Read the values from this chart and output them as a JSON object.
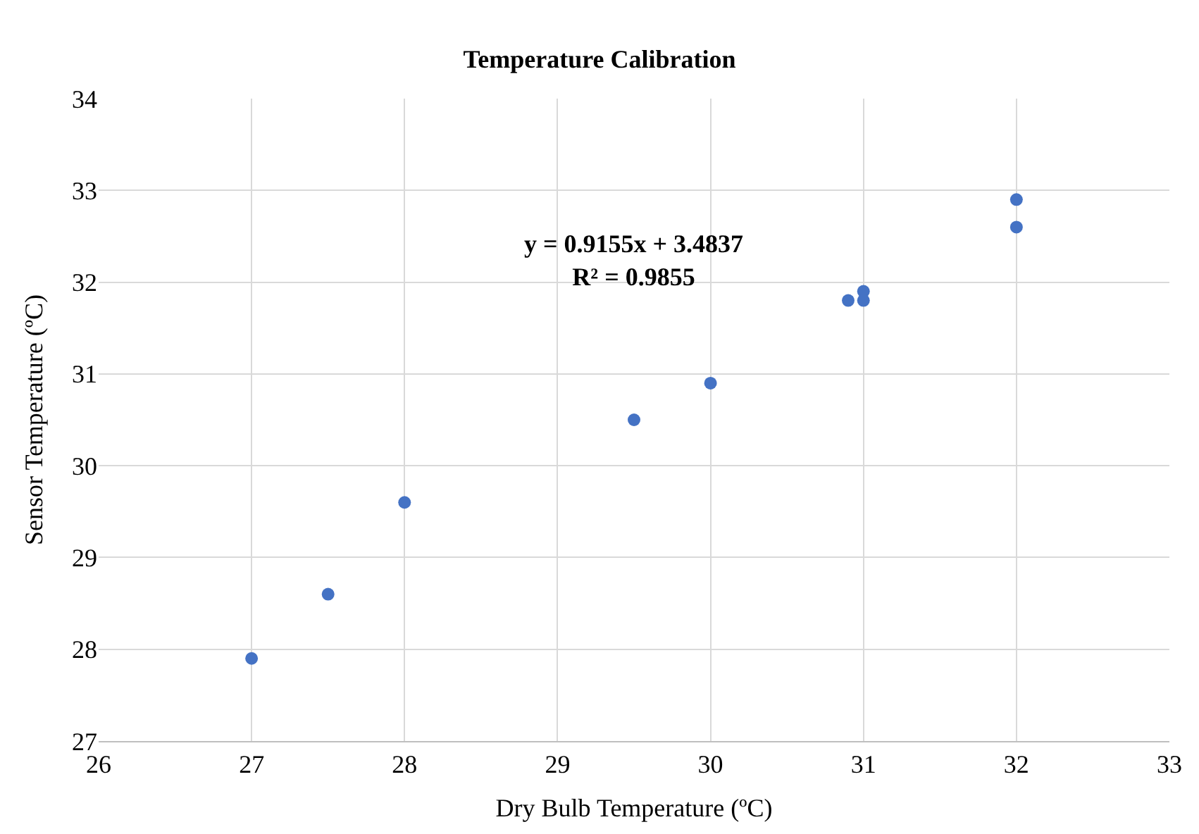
{
  "chart_data": {
    "type": "scatter",
    "title": "Temperature Calibration",
    "xlabel": "Dry Bulb Temperature (ºC)",
    "ylabel": "Sensor Temperature (ºC)",
    "x": [
      27,
      27.5,
      28,
      29.5,
      30,
      30.9,
      31,
      31,
      32,
      32
    ],
    "series": [
      {
        "color": "#4472c4",
        "values": [
          27.9,
          28.6,
          29.6,
          30.5,
          30.9,
          31.8,
          31.9,
          31.8,
          32.9,
          32.6
        ]
      }
    ],
    "annotations": [
      "y = 0.9155x + 3.4837\nR² = 0.9855"
    ],
    "xlim": [
      26,
      33
    ],
    "xticks": [
      26,
      27,
      28,
      29,
      30,
      31,
      32,
      33
    ],
    "ylim": [
      27,
      34
    ],
    "yticks": [
      27,
      28,
      29,
      30,
      31,
      32,
      33,
      34
    ],
    "grid": true,
    "marker": "circle"
  }
}
